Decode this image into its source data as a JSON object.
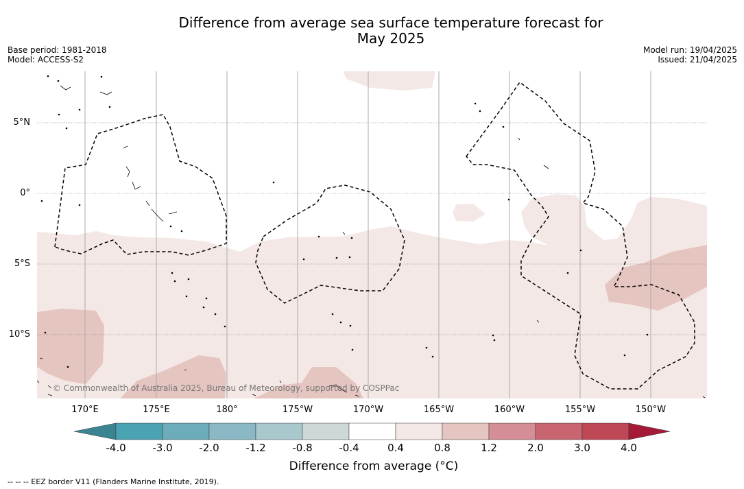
{
  "title": {
    "line1": "Difference from average sea surface temperature forecast for",
    "line2": "May 2025"
  },
  "meta_left": {
    "base_period": "Base period: 1981-2018",
    "model": "Model: ACCESS-S2"
  },
  "meta_right": {
    "model_run": "Model run: 19/04/2025",
    "issued": "Issued: 21/04/2025"
  },
  "map": {
    "lat_labels": [
      "5°N",
      "0°",
      "5°S",
      "10°S"
    ],
    "lon_labels": [
      "170°E",
      "175°E",
      "180°",
      "175°W",
      "170°W",
      "165°W",
      "160°W",
      "155°W",
      "150°W"
    ],
    "copyright": "© Commonwealth of Australia 2025, Bureau of Meteorology, supported by COSPPac"
  },
  "colorbar": {
    "title": "Difference from average (°C)",
    "tick_labels": [
      "-4.0",
      "-3.0",
      "-2.0",
      "-1.2",
      "-0.8",
      "-0.4",
      "0.4",
      "0.8",
      "1.2",
      "2.0",
      "3.0",
      "4.0"
    ],
    "colors": [
      "#3b8593",
      "#4aa3b2",
      "#6cacbb",
      "#8ab8c4",
      "#a9c8cd",
      "#cdd8d9",
      "#ffffff",
      "#f4e8e6",
      "#e5c5c0",
      "#d58e95",
      "#c96570",
      "#bf4857",
      "#a51a37"
    ]
  },
  "footnote": "-- -- -- EEZ border V11 (Flanders Marine Institute, 2019)."
}
